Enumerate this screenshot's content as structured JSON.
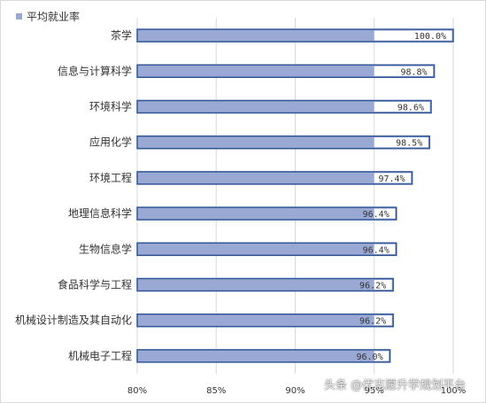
{
  "chart_data": {
    "type": "bar",
    "orientation": "horizontal",
    "title": "",
    "legend": {
      "position": "top-left"
    },
    "series": [
      {
        "name": "平均就业率",
        "values": [
          100.0,
          98.8,
          98.6,
          98.5,
          97.4,
          96.4,
          96.4,
          96.2,
          96.2,
          96.0
        ],
        "value_labels": [
          "100.0%",
          "98.8%",
          "98.6%",
          "98.5%",
          "97.4%",
          "96.4%",
          "96.4%",
          "96.2%",
          "96.2%",
          "96.0%"
        ]
      }
    ],
    "categories": [
      "茶学",
      "信息与计算科学",
      "环境科学",
      "应用化学",
      "环境工程",
      "地理信息科学",
      "生物信息学",
      "食品科学与工程",
      "机械设计制造及其自动化",
      "机械电子工程"
    ],
    "xlim": [
      80,
      100
    ],
    "xticks": [
      80,
      85,
      90,
      95,
      100
    ],
    "xtick_labels": [
      "80%",
      "85%",
      "90%",
      "95%",
      "100%"
    ],
    "colors": {
      "bar_fill": "#9aa9d4",
      "bar_border": "#2f5597",
      "grid": "#d9d9d9",
      "legend_swatch": "#9aa9d4"
    },
    "grid": "vertical"
  },
  "watermark": "头条 @优志愿升学规划平台"
}
